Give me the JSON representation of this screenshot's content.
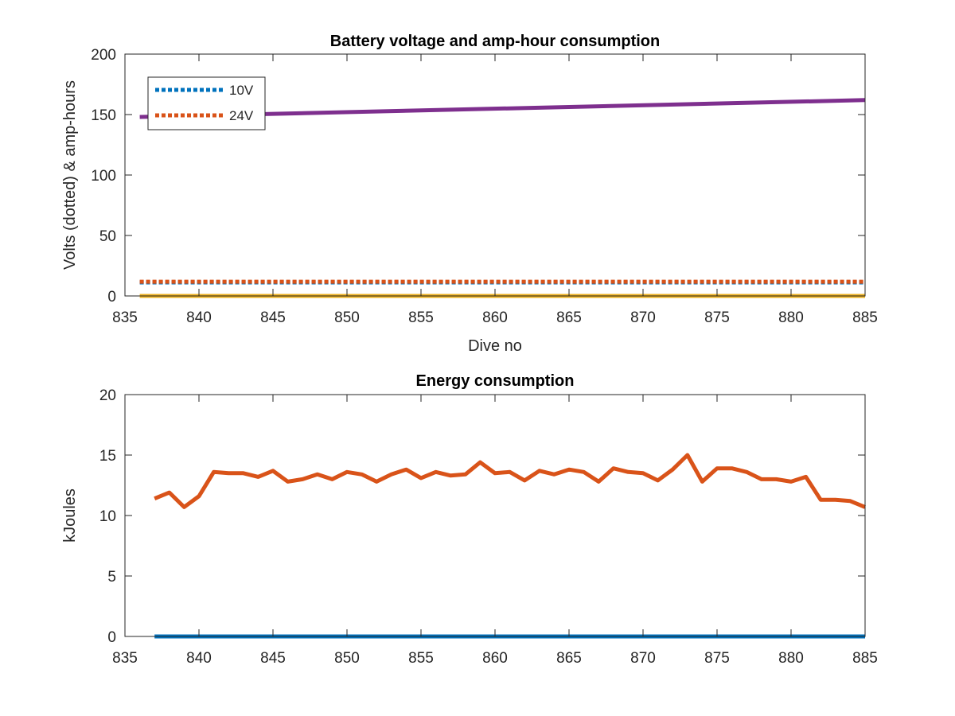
{
  "colors": {
    "blue": "#0072BD",
    "orange": "#D95319",
    "yellow": "#EDB120",
    "purple": "#7E2F8E",
    "axis": "#262626",
    "background": "#ffffff"
  },
  "chart_data": [
    {
      "type": "line",
      "title": "Battery voltage and amp-hour consumption",
      "xlabel": "Dive no",
      "ylabel": "Volts (dotted) & amp-hours",
      "xlim": [
        835,
        885
      ],
      "ylim": [
        0,
        200
      ],
      "xticks": [
        835,
        840,
        845,
        850,
        855,
        860,
        865,
        870,
        875,
        880,
        885
      ],
      "yticks": [
        0,
        50,
        100,
        150,
        200
      ],
      "grid": false,
      "legend_position": "top-left",
      "series": [
        {
          "name": "10V",
          "color": "#0072BD",
          "style": "dotted",
          "x": [
            836,
            885
          ],
          "y": [
            11.2,
            11.2
          ]
        },
        {
          "name": "24V",
          "color": "#D95319",
          "style": "dotted",
          "x": [
            836,
            885
          ],
          "y": [
            11.8,
            11.8
          ]
        },
        {
          "color": "#EDB120",
          "style": "solid",
          "x": [
            836,
            885
          ],
          "y": [
            0,
            0
          ]
        },
        {
          "color": "#7E2F8E",
          "style": "solid",
          "x": [
            836,
            885
          ],
          "y": [
            148,
            162
          ]
        }
      ]
    },
    {
      "type": "line",
      "title": "Energy consumption",
      "xlabel": "",
      "ylabel": "kJoules",
      "xlim": [
        835,
        885
      ],
      "ylim": [
        0,
        20
      ],
      "xticks": [
        835,
        840,
        845,
        850,
        855,
        860,
        865,
        870,
        875,
        880,
        885
      ],
      "yticks": [
        0,
        5,
        10,
        15,
        20
      ],
      "grid": false,
      "series": [
        {
          "color": "#0072BD",
          "style": "solid",
          "x": [
            837,
            885
          ],
          "y": [
            0,
            0
          ]
        },
        {
          "color": "#D95319",
          "style": "solid",
          "x": [
            837,
            838,
            839,
            840,
            841,
            842,
            843,
            844,
            845,
            846,
            847,
            848,
            849,
            850,
            851,
            852,
            853,
            854,
            855,
            856,
            857,
            858,
            859,
            860,
            861,
            862,
            863,
            864,
            865,
            866,
            867,
            868,
            869,
            870,
            871,
            872,
            873,
            874,
            875,
            876,
            877,
            878,
            879,
            880,
            881,
            882,
            883,
            884,
            885
          ],
          "y": [
            11.4,
            11.9,
            10.7,
            11.6,
            13.6,
            13.5,
            13.5,
            13.2,
            13.7,
            12.8,
            13.0,
            13.4,
            13.0,
            13.6,
            13.4,
            12.8,
            13.4,
            13.8,
            13.1,
            13.6,
            13.3,
            13.4,
            14.4,
            13.5,
            13.6,
            12.9,
            13.7,
            13.4,
            13.8,
            13.6,
            12.8,
            13.9,
            13.6,
            13.5,
            12.9,
            13.8,
            15.0,
            12.8,
            13.9,
            13.9,
            13.6,
            13.0,
            13.0,
            12.8,
            13.2,
            11.3,
            11.3,
            11.2,
            10.7
          ]
        }
      ]
    }
  ]
}
